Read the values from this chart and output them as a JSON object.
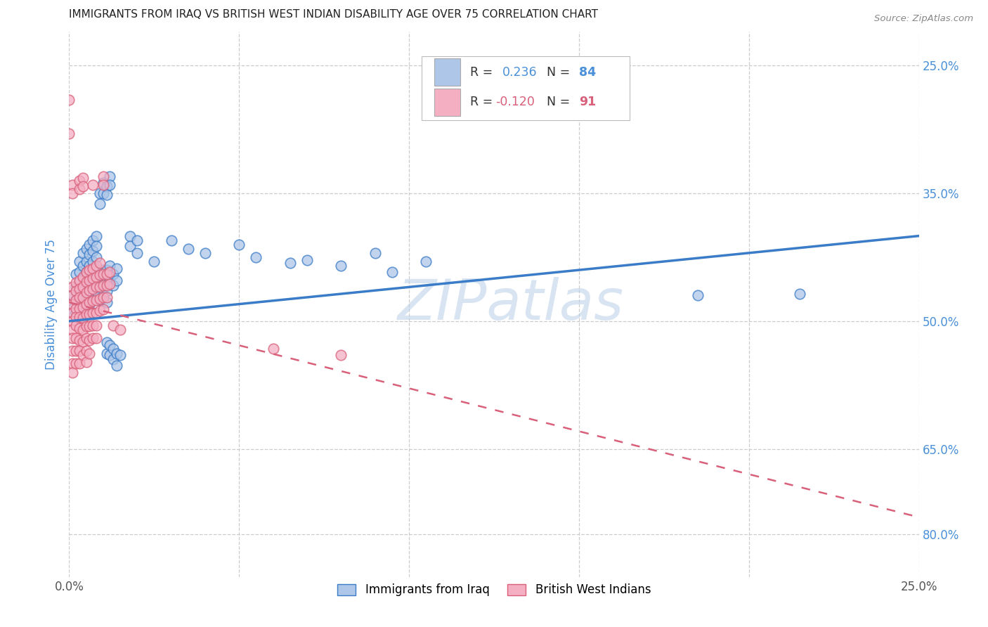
{
  "title": "IMMIGRANTS FROM IRAQ VS BRITISH WEST INDIAN DISABILITY AGE OVER 75 CORRELATION CHART",
  "source": "Source: ZipAtlas.com",
  "xlabel_ticks": [
    "0.0%",
    "",
    "",
    "",
    "",
    "25.0%"
  ],
  "ylabel_ticks_right": [
    "80.0%",
    "65.0%",
    "50.0%",
    "35.0%",
    "25.0%"
  ],
  "ylabel_label": "Disability Age Over 75",
  "legend_label1": "Immigrants from Iraq",
  "legend_label2": "British West Indians",
  "r1": 0.236,
  "n1": 84,
  "r2": -0.12,
  "n2": 91,
  "color_iraq": "#aec6e8",
  "color_bwi": "#f4afc3",
  "color_iraq_line": "#3a7cc7",
  "color_bwi_line": "#d9607a",
  "color_ylabel": "#4a90d9",
  "color_r1": "#4a90d9",
  "color_r2": "#d9607a",
  "watermark": "ZIPatlas",
  "x_min": 0.0,
  "x_max": 0.25,
  "y_min": 0.2,
  "y_max": 0.84,
  "y_ticks": [
    0.25,
    0.35,
    0.5,
    0.65,
    0.8
  ],
  "iraq_line_x": [
    0.0,
    0.25
  ],
  "iraq_line_y": [
    0.5,
    0.6
  ],
  "bwi_line_x": [
    0.0,
    0.25
  ],
  "bwi_line_y": [
    0.522,
    0.27
  ],
  "iraq_points": [
    [
      0.001,
      0.515
    ],
    [
      0.001,
      0.53
    ],
    [
      0.001,
      0.51
    ],
    [
      0.002,
      0.555
    ],
    [
      0.002,
      0.54
    ],
    [
      0.002,
      0.525
    ],
    [
      0.002,
      0.51
    ],
    [
      0.003,
      0.57
    ],
    [
      0.003,
      0.558
    ],
    [
      0.003,
      0.545
    ],
    [
      0.003,
      0.53
    ],
    [
      0.003,
      0.515
    ],
    [
      0.003,
      0.505
    ],
    [
      0.004,
      0.58
    ],
    [
      0.004,
      0.565
    ],
    [
      0.004,
      0.55
    ],
    [
      0.004,
      0.535
    ],
    [
      0.004,
      0.52
    ],
    [
      0.004,
      0.505
    ],
    [
      0.005,
      0.585
    ],
    [
      0.005,
      0.57
    ],
    [
      0.005,
      0.558
    ],
    [
      0.005,
      0.545
    ],
    [
      0.005,
      0.53
    ],
    [
      0.005,
      0.515
    ],
    [
      0.006,
      0.59
    ],
    [
      0.006,
      0.578
    ],
    [
      0.006,
      0.565
    ],
    [
      0.006,
      0.55
    ],
    [
      0.006,
      0.535
    ],
    [
      0.006,
      0.52
    ],
    [
      0.007,
      0.595
    ],
    [
      0.007,
      0.582
    ],
    [
      0.007,
      0.57
    ],
    [
      0.007,
      0.558
    ],
    [
      0.007,
      0.545
    ],
    [
      0.007,
      0.53
    ],
    [
      0.008,
      0.6
    ],
    [
      0.008,
      0.588
    ],
    [
      0.008,
      0.575
    ],
    [
      0.008,
      0.562
    ],
    [
      0.008,
      0.55
    ],
    [
      0.008,
      0.535
    ],
    [
      0.009,
      0.65
    ],
    [
      0.009,
      0.638
    ],
    [
      0.009,
      0.555
    ],
    [
      0.009,
      0.54
    ],
    [
      0.009,
      0.525
    ],
    [
      0.01,
      0.662
    ],
    [
      0.01,
      0.65
    ],
    [
      0.01,
      0.56
    ],
    [
      0.01,
      0.545
    ],
    [
      0.01,
      0.53
    ],
    [
      0.011,
      0.658
    ],
    [
      0.011,
      0.648
    ],
    [
      0.011,
      0.56
    ],
    [
      0.011,
      0.548
    ],
    [
      0.011,
      0.535
    ],
    [
      0.011,
      0.522
    ],
    [
      0.011,
      0.475
    ],
    [
      0.011,
      0.462
    ],
    [
      0.012,
      0.67
    ],
    [
      0.012,
      0.66
    ],
    [
      0.012,
      0.565
    ],
    [
      0.012,
      0.55
    ],
    [
      0.012,
      0.472
    ],
    [
      0.012,
      0.46
    ],
    [
      0.013,
      0.555
    ],
    [
      0.013,
      0.542
    ],
    [
      0.013,
      0.468
    ],
    [
      0.013,
      0.455
    ],
    [
      0.014,
      0.562
    ],
    [
      0.014,
      0.548
    ],
    [
      0.014,
      0.462
    ],
    [
      0.014,
      0.448
    ],
    [
      0.015,
      0.46
    ],
    [
      0.018,
      0.6
    ],
    [
      0.018,
      0.588
    ],
    [
      0.02,
      0.595
    ],
    [
      0.02,
      0.58
    ],
    [
      0.025,
      0.57
    ],
    [
      0.03,
      0.595
    ],
    [
      0.035,
      0.585
    ],
    [
      0.04,
      0.58
    ],
    [
      0.05,
      0.59
    ],
    [
      0.055,
      0.575
    ],
    [
      0.065,
      0.568
    ],
    [
      0.07,
      0.572
    ],
    [
      0.08,
      0.565
    ],
    [
      0.09,
      0.58
    ],
    [
      0.095,
      0.558
    ],
    [
      0.105,
      0.57
    ],
    [
      0.185,
      0.53
    ],
    [
      0.215,
      0.532
    ]
  ],
  "bwi_points": [
    [
      0.0,
      0.76
    ],
    [
      0.0,
      0.72
    ],
    [
      0.001,
      0.66
    ],
    [
      0.001,
      0.65
    ],
    [
      0.001,
      0.54
    ],
    [
      0.001,
      0.53
    ],
    [
      0.001,
      0.52
    ],
    [
      0.001,
      0.51
    ],
    [
      0.001,
      0.5
    ],
    [
      0.001,
      0.49
    ],
    [
      0.001,
      0.48
    ],
    [
      0.001,
      0.465
    ],
    [
      0.001,
      0.45
    ],
    [
      0.001,
      0.44
    ],
    [
      0.002,
      0.545
    ],
    [
      0.002,
      0.535
    ],
    [
      0.002,
      0.525
    ],
    [
      0.002,
      0.515
    ],
    [
      0.002,
      0.505
    ],
    [
      0.002,
      0.495
    ],
    [
      0.002,
      0.48
    ],
    [
      0.002,
      0.465
    ],
    [
      0.002,
      0.45
    ],
    [
      0.003,
      0.665
    ],
    [
      0.003,
      0.655
    ],
    [
      0.003,
      0.548
    ],
    [
      0.003,
      0.538
    ],
    [
      0.003,
      0.528
    ],
    [
      0.003,
      0.515
    ],
    [
      0.003,
      0.505
    ],
    [
      0.003,
      0.492
    ],
    [
      0.003,
      0.478
    ],
    [
      0.003,
      0.465
    ],
    [
      0.003,
      0.45
    ],
    [
      0.004,
      0.668
    ],
    [
      0.004,
      0.658
    ],
    [
      0.004,
      0.552
    ],
    [
      0.004,
      0.54
    ],
    [
      0.004,
      0.528
    ],
    [
      0.004,
      0.516
    ],
    [
      0.004,
      0.504
    ],
    [
      0.004,
      0.49
    ],
    [
      0.004,
      0.476
    ],
    [
      0.004,
      0.46
    ],
    [
      0.005,
      0.558
    ],
    [
      0.005,
      0.546
    ],
    [
      0.005,
      0.534
    ],
    [
      0.005,
      0.52
    ],
    [
      0.005,
      0.508
    ],
    [
      0.005,
      0.494
    ],
    [
      0.005,
      0.48
    ],
    [
      0.005,
      0.465
    ],
    [
      0.005,
      0.452
    ],
    [
      0.006,
      0.56
    ],
    [
      0.006,
      0.548
    ],
    [
      0.006,
      0.536
    ],
    [
      0.006,
      0.522
    ],
    [
      0.006,
      0.508
    ],
    [
      0.006,
      0.494
    ],
    [
      0.006,
      0.478
    ],
    [
      0.006,
      0.462
    ],
    [
      0.007,
      0.66
    ],
    [
      0.007,
      0.562
    ],
    [
      0.007,
      0.55
    ],
    [
      0.007,
      0.538
    ],
    [
      0.007,
      0.524
    ],
    [
      0.007,
      0.51
    ],
    [
      0.007,
      0.495
    ],
    [
      0.007,
      0.48
    ],
    [
      0.008,
      0.565
    ],
    [
      0.008,
      0.552
    ],
    [
      0.008,
      0.54
    ],
    [
      0.008,
      0.525
    ],
    [
      0.008,
      0.51
    ],
    [
      0.008,
      0.495
    ],
    [
      0.008,
      0.48
    ],
    [
      0.009,
      0.568
    ],
    [
      0.009,
      0.554
    ],
    [
      0.009,
      0.54
    ],
    [
      0.009,
      0.526
    ],
    [
      0.009,
      0.512
    ],
    [
      0.01,
      0.67
    ],
    [
      0.01,
      0.66
    ],
    [
      0.01,
      0.555
    ],
    [
      0.01,
      0.542
    ],
    [
      0.01,
      0.528
    ],
    [
      0.01,
      0.514
    ],
    [
      0.011,
      0.555
    ],
    [
      0.011,
      0.542
    ],
    [
      0.011,
      0.528
    ],
    [
      0.012,
      0.558
    ],
    [
      0.012,
      0.544
    ],
    [
      0.013,
      0.495
    ],
    [
      0.015,
      0.49
    ],
    [
      0.06,
      0.468
    ],
    [
      0.08,
      0.46
    ]
  ]
}
